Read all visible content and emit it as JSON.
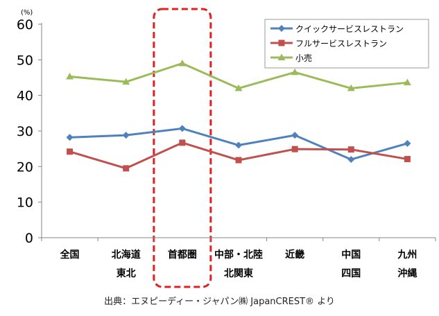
{
  "chart_data": {
    "type": "line",
    "unit_label": "(%)",
    "ylim": [
      0,
      60
    ],
    "yticks": [
      0,
      10,
      20,
      30,
      40,
      50,
      60
    ],
    "categories": [
      [
        "全国"
      ],
      [
        "北海道",
        "東北"
      ],
      [
        "首都圏"
      ],
      [
        "中部・北陸",
        "北関東"
      ],
      [
        "近畿"
      ],
      [
        "中国",
        "四国"
      ],
      [
        "九州",
        "沖縄"
      ]
    ],
    "series": [
      {
        "name": "クイックサービスレストラン",
        "color": "#4f81bd",
        "marker": "diamond",
        "values": [
          28.2,
          28.8,
          30.7,
          26.0,
          28.8,
          22.0,
          26.5
        ]
      },
      {
        "name": "フルサービスレストラン",
        "color": "#c0504d",
        "marker": "square",
        "values": [
          24.2,
          19.5,
          26.7,
          21.8,
          24.9,
          24.8,
          22.1
        ]
      },
      {
        "name": "小売",
        "color": "#9bbb59",
        "marker": "triangle",
        "values": [
          45.3,
          43.8,
          49.0,
          42.0,
          46.5,
          42.0,
          43.6
        ]
      }
    ],
    "highlight": {
      "category_index": 2,
      "style": "dashed-rounded-box",
      "color": "#e02020"
    },
    "legend_position": "top-right",
    "grid": false
  },
  "source": "出典：エヌピーディー・ジャパン㈱ JapanCREST® より"
}
